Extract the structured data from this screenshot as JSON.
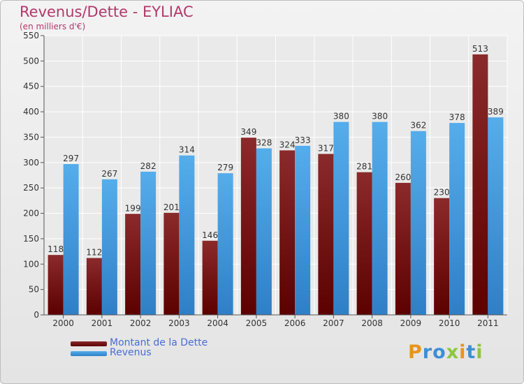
{
  "header": {
    "title": "Revenus/Dette - EYLIAC",
    "subtitle": "(en milliers d'€)"
  },
  "colors": {
    "title": "#b2386a",
    "dette": "#7a1010",
    "revenus": "#3e9ee6",
    "legend_text": "#4a6cd6"
  },
  "legend": {
    "dette_label": "Montant de la Dette",
    "revenus_label": "Revenus"
  },
  "logo": {
    "letters": [
      "P",
      "r",
      "o",
      "x",
      "i",
      "t",
      "i"
    ],
    "colors": [
      "#e8941a",
      "#3d8fd4",
      "#3d8fd4",
      "#8cc63f",
      "#e8941a",
      "#3d8fd4",
      "#8cc63f"
    ]
  },
  "chart_data": {
    "type": "bar",
    "title": "Revenus/Dette - EYLIAC",
    "subtitle": "(en milliers d'€)",
    "categories": [
      "2000",
      "2001",
      "2002",
      "2003",
      "2004",
      "2005",
      "2006",
      "2007",
      "2008",
      "2009",
      "2010",
      "2011"
    ],
    "series": [
      {
        "name": "Montant de la Dette",
        "values": [
          118,
          112,
          199,
          201,
          146,
          349,
          324,
          317,
          281,
          260,
          230,
          513
        ]
      },
      {
        "name": "Revenus",
        "values": [
          297,
          267,
          282,
          314,
          279,
          328,
          333,
          380,
          380,
          362,
          378,
          389
        ]
      }
    ],
    "ylim": [
      0,
      550
    ],
    "yticks": [
      0,
      50,
      100,
      150,
      200,
      250,
      300,
      350,
      400,
      450,
      500,
      550
    ],
    "grid": true,
    "legend_position": "bottom-left"
  }
}
